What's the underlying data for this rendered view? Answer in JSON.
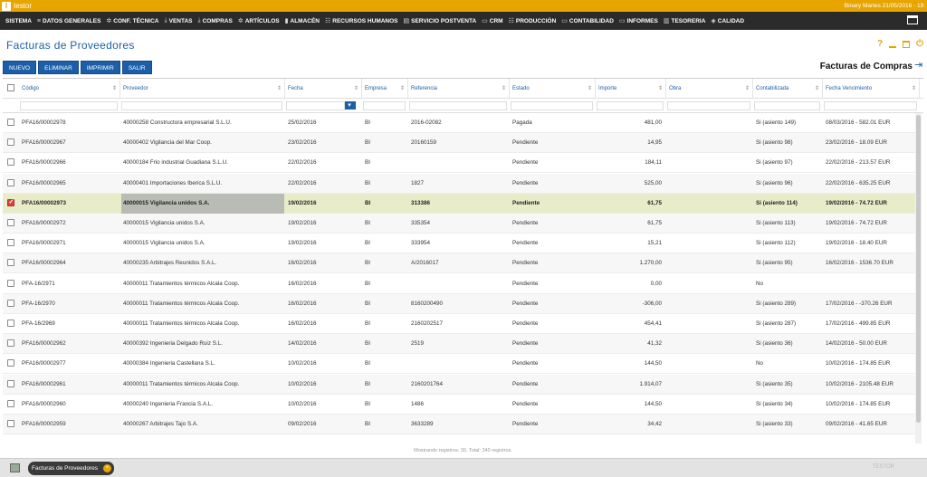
{
  "app": {
    "name": "Iestor",
    "logo_letter": "I",
    "user_info": "Binary Martes 21/05/2016 - 19:"
  },
  "menu": [
    {
      "icon": "",
      "label": "SISTEMA"
    },
    {
      "icon": "≡",
      "label": "DATOS GENERALES"
    },
    {
      "icon": "✲",
      "label": "CONF. TÉCNICA"
    },
    {
      "icon": "⤓",
      "label": "VENTAS"
    },
    {
      "icon": "⤓",
      "label": "COMPRAS"
    },
    {
      "icon": "✲",
      "label": "ARTÍCULOS"
    },
    {
      "icon": "▮",
      "label": "ALMACÉN"
    },
    {
      "icon": "☷",
      "label": "RECURSOS HUMANOS"
    },
    {
      "icon": "▤",
      "label": "SERVICIO POSTVENTA"
    },
    {
      "icon": "▭",
      "label": "CRM"
    },
    {
      "icon": "☷",
      "label": "PRODUCCIÓN"
    },
    {
      "icon": "▭",
      "label": "CONTABILIDAD"
    },
    {
      "icon": "▭",
      "label": "INFORMES"
    },
    {
      "icon": "▥",
      "label": "TESORERIA"
    },
    {
      "icon": "◈",
      "label": "CALIDAD"
    }
  ],
  "page": {
    "title": "Facturas de Proveedores",
    "section_title": "Facturas de Compras",
    "help": "?"
  },
  "toolbar": {
    "nuevo": "NUEVO",
    "eliminar": "ELIMINAR",
    "imprimir": "IMPRIMIR",
    "salir": "SALIR"
  },
  "columns": [
    "Código",
    "Proveedor",
    "Fecha",
    "Empresa",
    "Referencia",
    "Estado",
    "Importe",
    "Obra",
    "Contabilizada",
    "Fecha Vencimiento"
  ],
  "rows": [
    {
      "codigo": "PFA16/00002978",
      "proveedor": "40000258 Constructora empresarial S.L.U.",
      "fecha": "25/02/2016",
      "empresa": "BI",
      "referencia": "2016-02082",
      "estado": "Pagada",
      "importe": "481,00",
      "obra": "",
      "contabilizada": "Si (asiento 149)",
      "vencimiento": "08/03/2016 - 582.01 EUR"
    },
    {
      "codigo": "PFA16/00002967",
      "proveedor": "40000402 Vigilancia del Mar Coop.",
      "fecha": "23/02/2016",
      "empresa": "BI",
      "referencia": "20160159",
      "estado": "Pendiente",
      "importe": "14,95",
      "obra": "",
      "contabilizada": "Si (asiento 98)",
      "vencimiento": "23/02/2016 - 18.09 EUR"
    },
    {
      "codigo": "PFA16/00002966",
      "proveedor": "40000184 Frio industrial Guadiana S.L.U.",
      "fecha": "22/02/2016",
      "empresa": "BI",
      "referencia": "",
      "estado": "Pendiente",
      "importe": "184,11",
      "obra": "",
      "contabilizada": "Si (asiento 97)",
      "vencimiento": "22/02/2016 - 213.57 EUR"
    },
    {
      "codigo": "PFA16/00002965",
      "proveedor": "40000401 Importaciones Iberica S.L.U.",
      "fecha": "22/02/2016",
      "empresa": "BI",
      "referencia": "1827",
      "estado": "Pendiente",
      "importe": "525,00",
      "obra": "",
      "contabilizada": "Si (asiento 96)",
      "vencimiento": "22/02/2016 - 635.25 EUR"
    },
    {
      "codigo": "PFA16/00002973",
      "proveedor": "40000015 Vigilancia unidos S.A.",
      "fecha": "19/02/2016",
      "empresa": "BI",
      "referencia": "313386",
      "estado": "Pendiente",
      "importe": "61,75",
      "obra": "",
      "contabilizada": "Si (asiento 114)",
      "vencimiento": "19/02/2016 - 74.72 EUR"
    },
    {
      "codigo": "PFA16/00002972",
      "proveedor": "40000015 Vigilancia unidos S.A.",
      "fecha": "19/02/2016",
      "empresa": "BI",
      "referencia": "335354",
      "estado": "Pendiente",
      "importe": "61,75",
      "obra": "",
      "contabilizada": "Si (asiento 113)",
      "vencimiento": "19/02/2016 - 74.72 EUR"
    },
    {
      "codigo": "PFA16/00002971",
      "proveedor": "40000015 Vigilancia unidos S.A.",
      "fecha": "19/02/2016",
      "empresa": "BI",
      "referencia": "333954",
      "estado": "Pendiente",
      "importe": "15,21",
      "obra": "",
      "contabilizada": "Si (asiento 112)",
      "vencimiento": "19/02/2016 - 18.40 EUR"
    },
    {
      "codigo": "PFA16/00002964",
      "proveedor": "40000235 Arbitrajes Reunidos S.A.L.",
      "fecha": "16/02/2016",
      "empresa": "BI",
      "referencia": "A/2016017",
      "estado": "Pendiente",
      "importe": "1.270,00",
      "obra": "",
      "contabilizada": "Si (asiento 95)",
      "vencimiento": "16/02/2016 - 1536.70 EUR"
    },
    {
      "codigo": "PFA-16/2971",
      "proveedor": "40000011 Tratamientos térmicos Alcala Coop.",
      "fecha": "16/02/2016",
      "empresa": "BI",
      "referencia": "",
      "estado": "Pendiente",
      "importe": "0,00",
      "obra": "",
      "contabilizada": "No",
      "vencimiento": ""
    },
    {
      "codigo": "PFA-16/2970",
      "proveedor": "40000011 Tratamientos térmicos Alcala Coop.",
      "fecha": "16/02/2016",
      "empresa": "BI",
      "referencia": "8160200490",
      "estado": "Pendiente",
      "importe": "-306,00",
      "obra": "",
      "contabilizada": "Si (asiento 289)",
      "vencimiento": "17/02/2016 - -370.26 EUR"
    },
    {
      "codigo": "PFA-16/2969",
      "proveedor": "40000011 Tratamientos térmicos Alcala Coop.",
      "fecha": "16/02/2016",
      "empresa": "BI",
      "referencia": "2160202517",
      "estado": "Pendiente",
      "importe": "454,41",
      "obra": "",
      "contabilizada": "Si (asiento 287)",
      "vencimiento": "17/02/2016 - 499.85 EUR"
    },
    {
      "codigo": "PFA16/00002962",
      "proveedor": "40000392 Ingenieria Delgado Ruiz S.L.",
      "fecha": "14/02/2016",
      "empresa": "BI",
      "referencia": "2519",
      "estado": "Pendiente",
      "importe": "41,32",
      "obra": "",
      "contabilizada": "Si (asiento 36)",
      "vencimiento": "14/02/2016 - 50.00 EUR"
    },
    {
      "codigo": "PFA16/00002977",
      "proveedor": "40000384 Ingenieria Castellana S.L.",
      "fecha": "10/02/2016",
      "empresa": "BI",
      "referencia": "",
      "estado": "Pendiente",
      "importe": "144,50",
      "obra": "",
      "contabilizada": "No",
      "vencimiento": "10/02/2016 - 174.85 EUR"
    },
    {
      "codigo": "PFA16/00002961",
      "proveedor": "40000011 Tratamientos térmicos Alcala Coop.",
      "fecha": "10/02/2016",
      "empresa": "BI",
      "referencia": "2160201764",
      "estado": "Pendiente",
      "importe": "1.914,07",
      "obra": "",
      "contabilizada": "Si (asiento 35)",
      "vencimiento": "10/02/2016 - 2105.48 EUR"
    },
    {
      "codigo": "PFA16/00002960",
      "proveedor": "40000240 Ingenieria Francia S.A.L.",
      "fecha": "10/02/2016",
      "empresa": "BI",
      "referencia": "1486",
      "estado": "Pendiente",
      "importe": "144,50",
      "obra": "",
      "contabilizada": "Si (asiento 34)",
      "vencimiento": "10/02/2016 - 174.85 EUR"
    },
    {
      "codigo": "PFA16/00002959",
      "proveedor": "40000267 Arbitrajes Tajo S.A.",
      "fecha": "09/02/2016",
      "empresa": "BI",
      "referencia": "3633289",
      "estado": "Pendiente",
      "importe": "34,42",
      "obra": "",
      "contabilizada": "Si (asiento 33)",
      "vencimiento": "09/02/2016 - 41.65 EUR"
    }
  ],
  "selected_row": 4,
  "footer": {
    "info": "Mostrando registros: 30. Total: 340 registros."
  },
  "taskbar": {
    "tab_label": "Facturas de Proveedores",
    "right_text": "TESTOR"
  },
  "colors": {
    "accent": "#e8a500",
    "primary": "#1c5fa8",
    "selected_row": "#e9ecc8"
  }
}
